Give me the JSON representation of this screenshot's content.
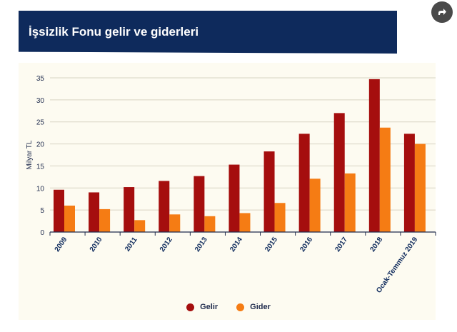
{
  "header": {
    "title": "İşsizlik Fonu gelir ve giderleri"
  },
  "share": {
    "icon": "share-icon"
  },
  "colors": {
    "banner": "#0e2a5c",
    "gelir": "#a50e0e",
    "gider": "#f57c14",
    "background": "#fdfbf1"
  },
  "chart_data": {
    "type": "bar",
    "ylabel": "Milyar TL",
    "ylim": [
      0,
      35
    ],
    "yticks": [
      "0",
      "5",
      "10",
      "15",
      "20",
      "25",
      "30",
      "35"
    ],
    "categories": [
      "2009",
      "2010",
      "2011",
      "2012",
      "2013",
      "2014",
      "2015",
      "2016",
      "2017",
      "2018",
      "Ocak-Temmuz 2019"
    ],
    "series": [
      {
        "name": "Gelir",
        "values": [
          9.6,
          9.0,
          10.2,
          11.6,
          12.7,
          15.3,
          18.3,
          22.3,
          27.0,
          34.7,
          22.3
        ]
      },
      {
        "name": "Gider",
        "values": [
          6.0,
          5.2,
          2.7,
          4.0,
          3.6,
          4.3,
          6.6,
          12.1,
          13.3,
          23.7,
          20.0
        ]
      }
    ],
    "legend_position": "bottom-center",
    "grid": true
  }
}
